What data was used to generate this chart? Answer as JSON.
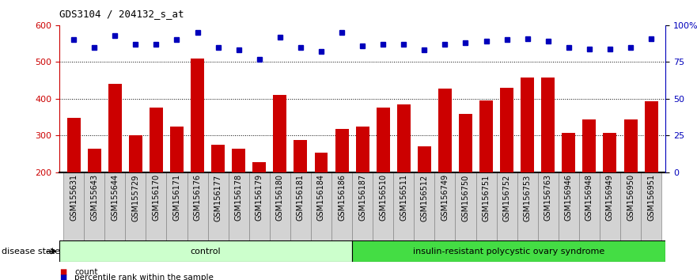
{
  "title": "GDS3104 / 204132_s_at",
  "samples": [
    "GSM155631",
    "GSM155643",
    "GSM155644",
    "GSM155729",
    "GSM156170",
    "GSM156171",
    "GSM156176",
    "GSM156177",
    "GSM156178",
    "GSM156179",
    "GSM156180",
    "GSM156181",
    "GSM156184",
    "GSM156186",
    "GSM156187",
    "GSM156510",
    "GSM156511",
    "GSM156512",
    "GSM156749",
    "GSM156750",
    "GSM156751",
    "GSM156752",
    "GSM156753",
    "GSM156763",
    "GSM156946",
    "GSM156948",
    "GSM156949",
    "GSM156950",
    "GSM156951"
  ],
  "bar_values": [
    348,
    265,
    440,
    300,
    375,
    325,
    510,
    275,
    265,
    228,
    410,
    287,
    253,
    318,
    325,
    375,
    385,
    270,
    428,
    358,
    395,
    430,
    458,
    458,
    308,
    343,
    308,
    343,
    393
  ],
  "dot_values_pct": [
    90,
    85,
    93,
    87,
    87,
    90,
    95,
    85,
    83,
    77,
    92,
    85,
    82,
    95,
    86,
    87,
    87,
    83,
    87,
    88,
    89,
    90,
    91,
    89,
    85,
    84,
    84,
    85,
    91
  ],
  "control_count": 14,
  "disease_count": 15,
  "control_label": "control",
  "disease_label": "insulin-resistant polycystic ovary syndrome",
  "disease_state_label": "disease state",
  "bar_color": "#cc0000",
  "dot_color": "#0000bb",
  "ylim_left": [
    200,
    600
  ],
  "ylim_right": [
    0,
    100
  ],
  "yticks_left": [
    200,
    300,
    400,
    500,
    600
  ],
  "yticks_right": [
    0,
    25,
    50,
    75,
    100
  ],
  "ytick_labels_right": [
    "0",
    "25",
    "50",
    "75",
    "100%"
  ],
  "grid_values": [
    300,
    400,
    500
  ],
  "plot_bg": "#ffffff",
  "xlabel_bg": "#d3d3d3",
  "control_bg": "#ccffcc",
  "disease_bg": "#44dd44",
  "legend_count": "count",
  "legend_pct": "percentile rank within the sample",
  "title_fontsize": 9,
  "tick_fontsize": 8,
  "label_fontsize": 7
}
